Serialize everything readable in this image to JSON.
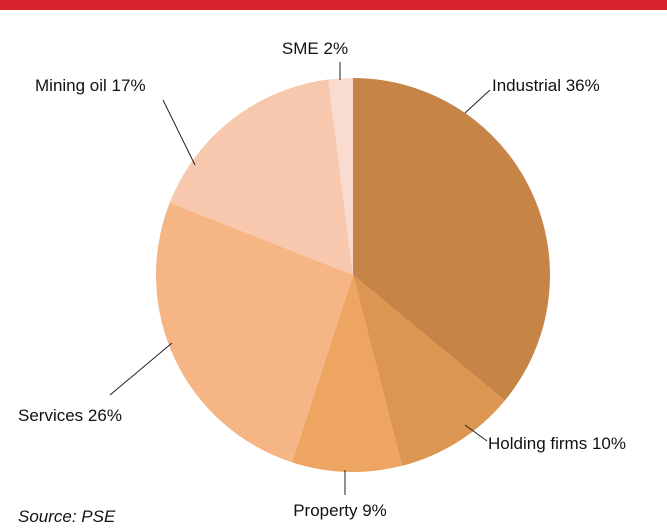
{
  "chart_data": {
    "type": "pie",
    "categories": [
      "Industrial",
      "Holding firms",
      "Property",
      "Services",
      "Mining oil",
      "SME"
    ],
    "values": [
      36,
      10,
      9,
      26,
      17,
      2
    ],
    "value_labels": [
      "36%",
      "10%",
      "9%",
      "26%",
      "17%",
      "2%"
    ],
    "colors": [
      "#c68446",
      "#dd9652",
      "#eda561",
      "#f5b584",
      "#f8c8ae",
      "#fadbd0"
    ],
    "source": "Source: PSE"
  }
}
